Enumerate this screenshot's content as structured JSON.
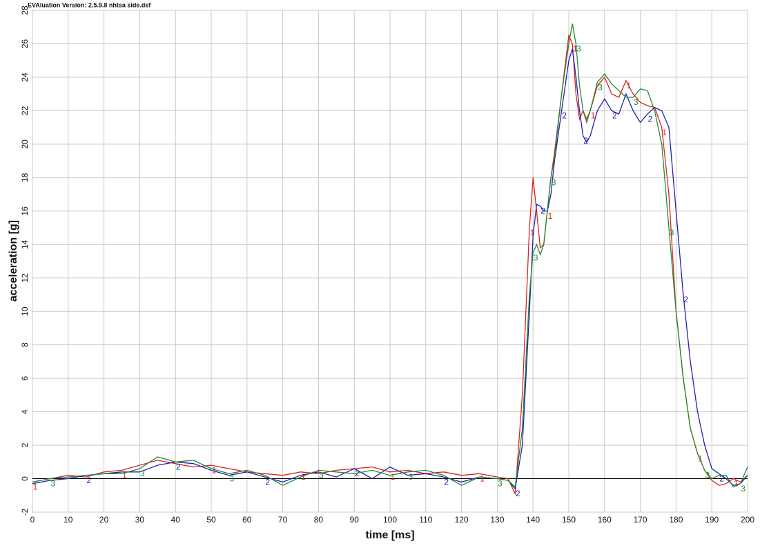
{
  "chart_data": {
    "type": "line",
    "title": "EVAluation Version: 2.5.9.8 nhtsa side.def",
    "xlabel": "time [ms]",
    "ylabel": "acceleration [g]",
    "x": [
      0,
      5,
      10,
      15,
      20,
      25,
      30,
      35,
      40,
      45,
      50,
      55,
      60,
      65,
      70,
      75,
      80,
      85,
      90,
      95,
      100,
      105,
      110,
      115,
      120,
      125,
      130,
      133,
      135,
      137,
      139,
      140,
      141,
      142,
      143,
      144,
      145,
      146,
      148,
      150,
      151,
      152,
      153,
      154,
      155,
      156,
      158,
      160,
      162,
      164,
      166,
      168,
      170,
      172,
      174,
      176,
      178,
      180,
      182,
      184,
      186,
      188,
      190,
      192,
      194,
      196,
      198,
      200
    ],
    "series": [
      {
        "name": "1",
        "color": "#e02020",
        "values": [
          -0.2,
          0.0,
          0.2,
          0.1,
          0.4,
          0.5,
          0.8,
          1.1,
          0.9,
          0.7,
          0.8,
          0.6,
          0.4,
          0.3,
          0.2,
          0.4,
          0.3,
          0.5,
          0.6,
          0.7,
          0.4,
          0.5,
          0.3,
          0.4,
          0.2,
          0.3,
          0.1,
          0.0,
          -0.9,
          5,
          15,
          18,
          16,
          13.8,
          14,
          16,
          18,
          19.5,
          23,
          26.5,
          26,
          23,
          21.5,
          22,
          21.5,
          22,
          23.5,
          24,
          23,
          22.8,
          23.8,
          23,
          22.5,
          22.3,
          22.2,
          21,
          17,
          10,
          6,
          3,
          1.5,
          0.5,
          -0.1,
          -0.4,
          -0.3,
          0.0,
          -0.2,
          0.2
        ]
      },
      {
        "name": "2",
        "color": "#2020b0",
        "values": [
          -0.3,
          -0.1,
          0.0,
          0.2,
          0.3,
          0.4,
          0.4,
          0.8,
          1.0,
          0.9,
          0.5,
          0.2,
          0.4,
          0.1,
          -0.2,
          0.2,
          0.4,
          0.1,
          0.6,
          0.0,
          0.7,
          0.2,
          0.3,
          0.1,
          -0.2,
          0.1,
          0.0,
          -0.1,
          -0.6,
          2,
          10,
          14.5,
          16.4,
          16.3,
          16,
          16,
          17,
          19,
          22,
          25,
          25.7,
          24,
          22,
          20.5,
          20.1,
          20.5,
          22,
          22.7,
          22,
          21.8,
          23,
          22,
          21.3,
          21.8,
          22.2,
          22,
          21,
          16,
          11,
          7,
          4,
          2,
          0.6,
          0.3,
          0,
          -0.4,
          -0.3,
          0.2
        ]
      },
      {
        "name": "3",
        "color": "#208a30",
        "values": [
          -0.2,
          0.0,
          0.1,
          0.2,
          0.3,
          0.3,
          0.6,
          1.3,
          1.0,
          1.1,
          0.6,
          0.3,
          0.5,
          0.2,
          -0.4,
          0.1,
          0.5,
          0.4,
          0.3,
          0.5,
          0.2,
          0.4,
          0.5,
          0.2,
          -0.4,
          0.1,
          0.0,
          -0.1,
          -0.5,
          3,
          11,
          13.5,
          14,
          13.4,
          14,
          16,
          18,
          19.2,
          23,
          26,
          27.2,
          26,
          23.5,
          22,
          21.3,
          22,
          23.7,
          24.2,
          23.6,
          23.2,
          22.8,
          22.8,
          23.3,
          23.2,
          22,
          20,
          15,
          10,
          6,
          3,
          1.5,
          0.5,
          0,
          0.2,
          0.2,
          -0.5,
          -0.3,
          0.7
        ]
      }
    ],
    "xlim": [
      0,
      200
    ],
    "xticks": [
      0,
      10,
      20,
      30,
      40,
      50,
      60,
      70,
      80,
      90,
      100,
      110,
      120,
      130,
      140,
      150,
      160,
      170,
      180,
      190,
      200
    ],
    "ylim": [
      -2,
      28
    ],
    "yticks": [
      -2,
      0,
      2,
      4,
      6,
      8,
      10,
      12,
      14,
      16,
      18,
      20,
      22,
      24,
      26,
      28
    ],
    "grid": true
  }
}
